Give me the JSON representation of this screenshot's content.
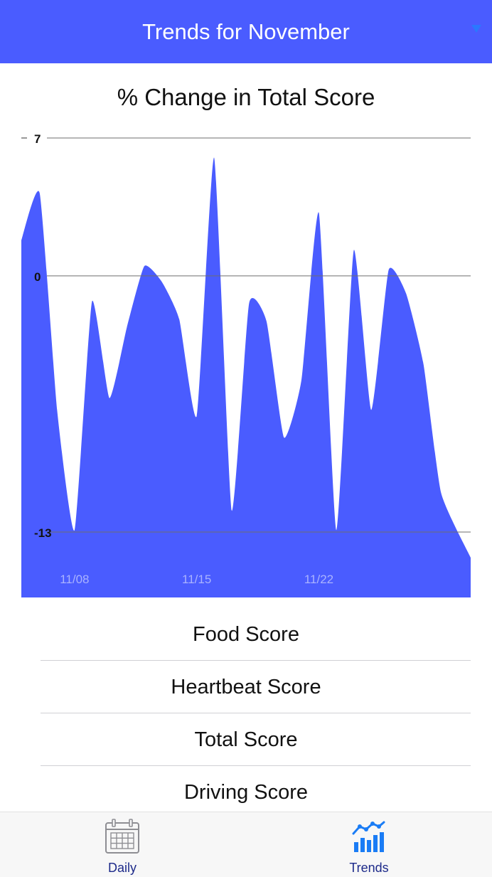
{
  "header": {
    "title": "Trends for November",
    "dropdown_glyph": "▼"
  },
  "chart_data": {
    "type": "area",
    "title": "% Change in Total Score",
    "ylim": [
      -13,
      7
    ],
    "yticks": [
      "7",
      "0",
      "-13"
    ],
    "x_tick_labels": [
      {
        "label": "11/08",
        "day": 8
      },
      {
        "label": "11/15",
        "day": 15
      },
      {
        "label": "11/22",
        "day": 22
      }
    ],
    "x_range_days": [
      4.95,
      30.7
    ],
    "points": [
      {
        "day": 5,
        "y": 1.8
      },
      {
        "day": 6,
        "y": 4.2
      },
      {
        "day": 7,
        "y": -6.8
      },
      {
        "day": 8,
        "y": -12.9
      },
      {
        "day": 9,
        "y": -1.3
      },
      {
        "day": 10,
        "y": -6.2
      },
      {
        "day": 11,
        "y": -2.6
      },
      {
        "day": 12,
        "y": 0.5
      },
      {
        "day": 13,
        "y": -0.3
      },
      {
        "day": 14,
        "y": -2.2
      },
      {
        "day": 15,
        "y": -7.1
      },
      {
        "day": 16,
        "y": 6.0
      },
      {
        "day": 17,
        "y": -11.9
      },
      {
        "day": 18,
        "y": -1.4
      },
      {
        "day": 19,
        "y": -2.3
      },
      {
        "day": 20,
        "y": -8.2
      },
      {
        "day": 21,
        "y": -5.3
      },
      {
        "day": 22,
        "y": 3.2
      },
      {
        "day": 23,
        "y": -12.9
      },
      {
        "day": 24,
        "y": 1.3
      },
      {
        "day": 25,
        "y": -6.8
      },
      {
        "day": 26,
        "y": 0.3
      },
      {
        "day": 27,
        "y": -0.9
      },
      {
        "day": 28,
        "y": -4.5
      },
      {
        "day": 29,
        "y": -11.0
      },
      {
        "day": 30,
        "y": -14.3
      }
    ],
    "fill_color": "#4a5cff"
  },
  "score_list": [
    {
      "label": "Food Score"
    },
    {
      "label": "Heartbeat Score"
    },
    {
      "label": "Total Score"
    },
    {
      "label": "Driving Score"
    }
  ],
  "tab_bar": {
    "tabs": [
      {
        "label": "Daily",
        "icon": "calendar-icon",
        "active": false
      },
      {
        "label": "Trends",
        "icon": "trends-chart-icon",
        "active": true
      }
    ]
  },
  "colors": {
    "accent": "#4a5cff",
    "tab_label": "#1d2a8a",
    "tab_active_icon": "#1a7cf5",
    "tab_inactive_icon": "#8e8e93"
  }
}
